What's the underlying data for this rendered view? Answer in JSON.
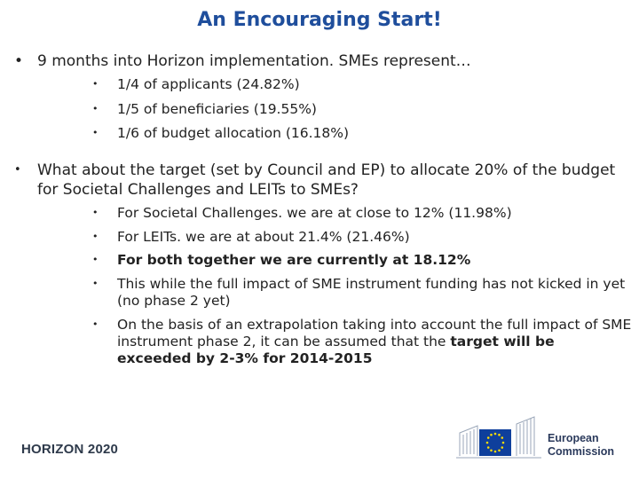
{
  "title": "An Encouraging Start!",
  "bullets": [
    {
      "marker": "•",
      "text": "9 months into Horizon implementation. SMEs represent…",
      "sub": [
        {
          "marker": "•",
          "text": "1/4 of applicants (24.82%)"
        },
        {
          "marker": "•",
          "text": "1/5 of beneficiaries (19.55%)"
        },
        {
          "marker": "•",
          "text": "1/6 of budget allocation (16.18%)"
        }
      ]
    },
    {
      "marker": "•",
      "text": "What about the target (set by Council and EP) to allocate 20% of the budget for Societal Challenges and LEITs to SMEs?",
      "sub": [
        {
          "marker": "•",
          "text": "For Societal Challenges. we are at close to 12% (11.98%)"
        },
        {
          "marker": "•",
          "text": "For LEITs. we are at about 21.4% (21.46%)"
        },
        {
          "marker": "•",
          "text": "For both together we are currently at 18.12%"
        },
        {
          "marker": "•",
          "text": "This while the full impact of SME instrument funding has not kicked in yet (no phase 2 yet)"
        },
        {
          "marker": "•",
          "text_before": "On the basis of an extrapolation taking into account the full impact of SME instrument phase 2, it can be assumed that the ",
          "text_bold": "target will be exceeded by 2-3% for 2014-2015"
        }
      ]
    }
  ],
  "footer": {
    "programme_logo": "HORIZON 2020",
    "commission_line1": "European",
    "commission_line2": "Commission",
    "colors": {
      "eu_blue": "#0e3f9c",
      "eu_star": "#ffdd00",
      "title": "#1f4e9c"
    }
  }
}
